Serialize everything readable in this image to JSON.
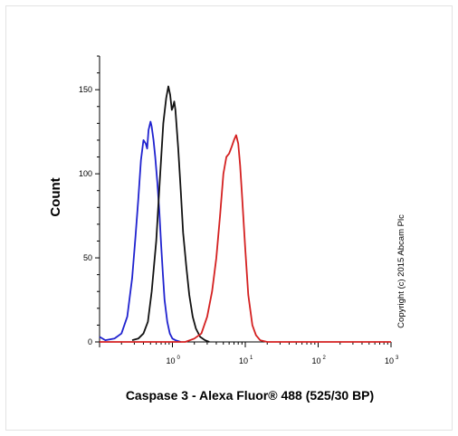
{
  "chart_data": {
    "type": "line",
    "title": "",
    "xlabel": "Caspase 3 - Alexa Fluor® 488 (525/30 BP)",
    "ylabel": "Count",
    "x_scale": "log",
    "xlim": [
      0.1,
      1000
    ],
    "ylim": [
      0,
      170
    ],
    "x_ticks": [
      {
        "value": 1,
        "base": "10",
        "exp": "0"
      },
      {
        "value": 10,
        "base": "10",
        "exp": "1"
      },
      {
        "value": 100,
        "base": "10",
        "exp": "2"
      },
      {
        "value": 1000,
        "base": "10",
        "exp": "3"
      }
    ],
    "y_ticks": [
      "0",
      "50",
      "100",
      "150"
    ],
    "y_tick_values": [
      0,
      50,
      100,
      150
    ],
    "grid": false,
    "legend": "none",
    "series": [
      {
        "color": "#1f22cf",
        "x": [
          0.1,
          0.12,
          0.16,
          0.2,
          0.24,
          0.28,
          0.31,
          0.34,
          0.37,
          0.4,
          0.43,
          0.45,
          0.47,
          0.5,
          0.52,
          0.55,
          0.58,
          0.62,
          0.66,
          0.7,
          0.74,
          0.78,
          0.85,
          0.92,
          1.0,
          1.1,
          1.3
        ],
        "y": [
          3,
          1,
          2,
          5,
          15,
          38,
          62,
          85,
          108,
          120,
          118,
          115,
          126,
          131,
          128,
          120,
          110,
          95,
          78,
          58,
          40,
          25,
          12,
          5,
          2,
          1,
          0
        ]
      },
      {
        "color": "#111111",
        "x": [
          0.28,
          0.34,
          0.4,
          0.46,
          0.52,
          0.6,
          0.68,
          0.75,
          0.82,
          0.88,
          0.93,
          0.98,
          1.02,
          1.06,
          1.1,
          1.2,
          1.3,
          1.4,
          1.55,
          1.7,
          1.9,
          2.1,
          2.4,
          2.8,
          3.2
        ],
        "y": [
          1,
          2,
          5,
          12,
          30,
          60,
          100,
          130,
          145,
          152,
          147,
          138,
          140,
          143,
          138,
          115,
          90,
          65,
          45,
          28,
          15,
          8,
          3,
          1,
          0
        ]
      },
      {
        "color": "#d42020",
        "x": [
          0.1,
          1.5,
          2.0,
          2.5,
          3.0,
          3.5,
          4.0,
          4.5,
          5.0,
          5.5,
          6.0,
          6.5,
          7.0,
          7.5,
          8.0,
          8.5,
          9.0,
          10.0,
          11.0,
          12.5,
          14.0,
          16.0,
          20.0,
          30.0,
          1000
        ],
        "y": [
          0,
          0,
          2,
          5,
          15,
          30,
          50,
          75,
          100,
          110,
          112,
          116,
          120,
          123,
          118,
          105,
          88,
          55,
          28,
          10,
          4,
          1,
          0,
          0,
          0
        ]
      }
    ]
  },
  "copyright": "Copyright (c) 2015 Abcam Plc"
}
